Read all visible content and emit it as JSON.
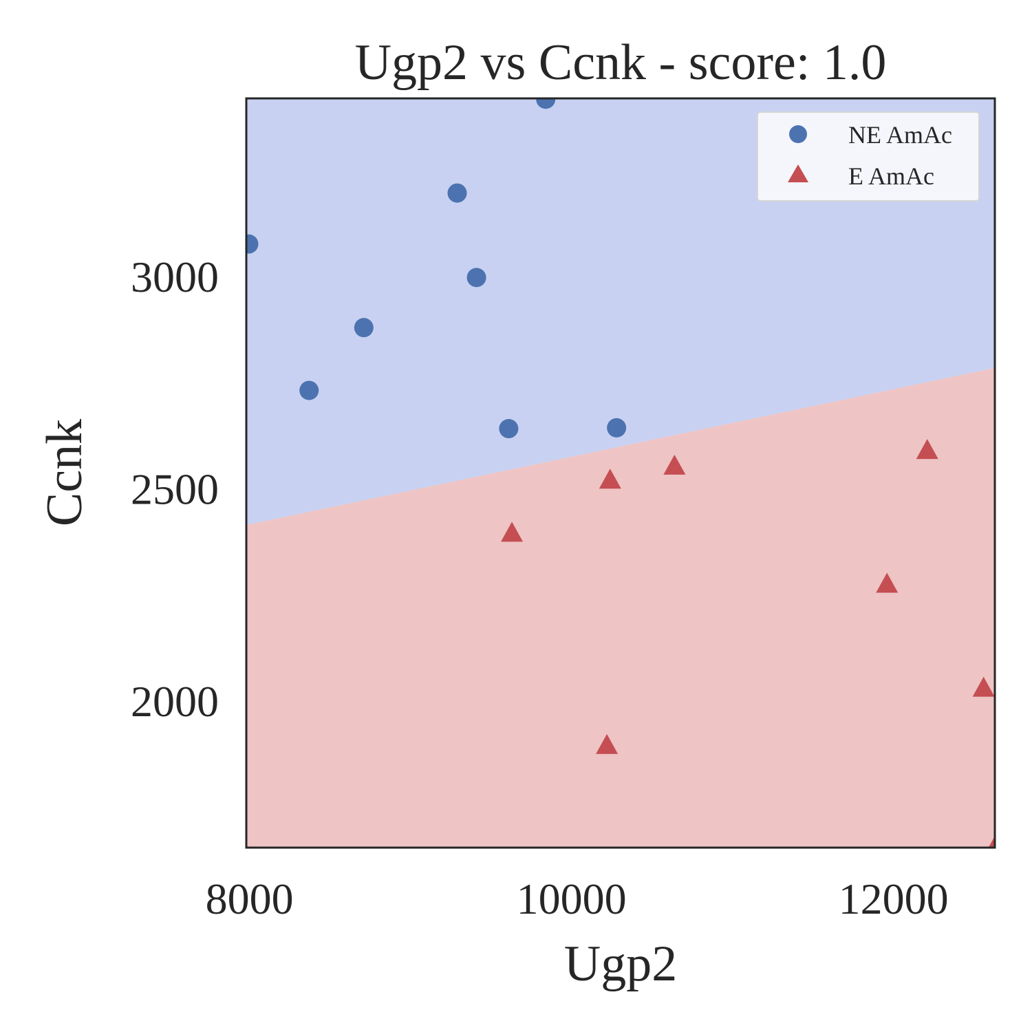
{
  "chart_data": {
    "type": "scatter",
    "title": "Ugp2 vs Ccnk - score: 1.0",
    "xlabel": "Ugp2",
    "ylabel": "Ccnk",
    "xlim": [
      7980,
      12630
    ],
    "ylim": [
      1655,
      3420
    ],
    "xticks": [
      8000,
      10000,
      12000
    ],
    "xtick_labels": [
      "8000",
      "10000",
      "12000"
    ],
    "yticks": [
      2000,
      2500,
      3000
    ],
    "ytick_labels": [
      "2000",
      "2500",
      "3000"
    ],
    "grid": false,
    "legend_position": "top-right",
    "decision_boundary": {
      "points": [
        [
          7980,
          2415
        ],
        [
          12630,
          2785
        ]
      ],
      "region_above_color": "#c8d1f1",
      "region_below_color": "#eec4c4"
    },
    "series": [
      {
        "name": "NE AmAc",
        "marker": "circle",
        "color": "#4c72b0",
        "points": [
          [
            7995,
            3077
          ],
          [
            8370,
            2732
          ],
          [
            8710,
            2880
          ],
          [
            9290,
            3197
          ],
          [
            9410,
            2998
          ],
          [
            9610,
            2642
          ],
          [
            9840,
            3418
          ],
          [
            10280,
            2644
          ]
        ]
      },
      {
        "name": "E AmAc",
        "marker": "triangle",
        "color": "#c44e52",
        "points": [
          [
            9630,
            2395
          ],
          [
            10240,
            2520
          ],
          [
            10640,
            2553
          ],
          [
            12210,
            2590
          ],
          [
            11960,
            2275
          ],
          [
            12560,
            2030
          ],
          [
            10220,
            1895
          ],
          [
            12630,
            1655
          ]
        ]
      }
    ]
  }
}
